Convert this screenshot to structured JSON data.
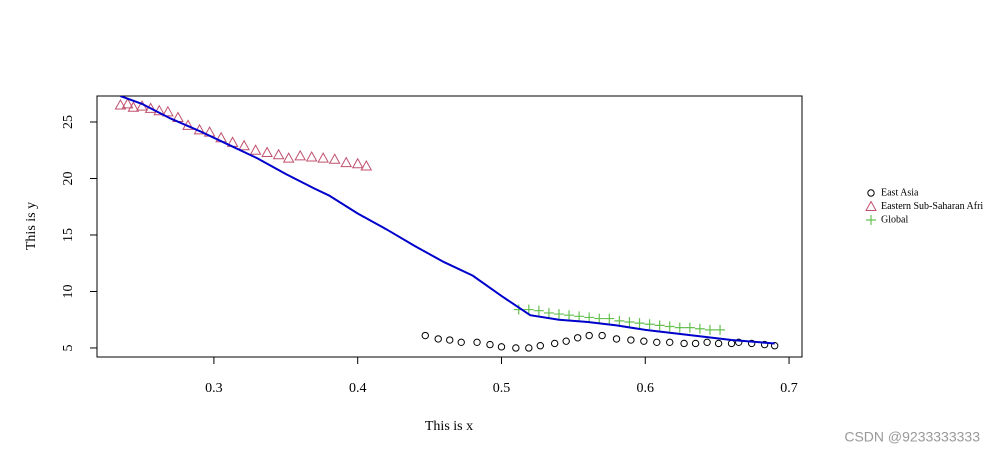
{
  "chart_data": {
    "type": "scatter",
    "x_label": "This is x",
    "y_label": "This is y",
    "xlim": [
      0.2187,
      0.709
    ],
    "ylim": [
      4.2,
      27.3
    ],
    "xticks": [
      0.3,
      0.4,
      0.5,
      0.6,
      0.7
    ],
    "yticks": [
      5,
      10,
      15,
      20,
      25
    ],
    "series": [
      {
        "name": "East Asia",
        "color": "#000000",
        "marker": "circle",
        "x": [
          0.447,
          0.456,
          0.464,
          0.472,
          0.483,
          0.492,
          0.5,
          0.51,
          0.519,
          0.527,
          0.537,
          0.545,
          0.553,
          0.561,
          0.57,
          0.58,
          0.59,
          0.599,
          0.608,
          0.617,
          0.627,
          0.635,
          0.643,
          0.651,
          0.66,
          0.665,
          0.674,
          0.683,
          0.69
        ],
        "values": [
          6.1,
          5.8,
          5.7,
          5.5,
          5.5,
          5.3,
          5.1,
          5.0,
          5.0,
          5.2,
          5.4,
          5.6,
          5.9,
          6.1,
          6.1,
          5.8,
          5.7,
          5.6,
          5.5,
          5.5,
          5.4,
          5.4,
          5.5,
          5.4,
          5.4,
          5.5,
          5.4,
          5.3,
          5.2
        ]
      },
      {
        "name": "Eastern Sub-Saharan Afri",
        "color": "#c0506e",
        "marker": "triangle",
        "x": [
          0.235,
          0.24,
          0.244,
          0.25,
          0.256,
          0.262,
          0.268,
          0.275,
          0.282,
          0.29,
          0.297,
          0.305,
          0.313,
          0.321,
          0.329,
          0.337,
          0.345,
          0.352,
          0.36,
          0.368,
          0.376,
          0.384,
          0.392,
          0.4,
          0.406
        ],
        "values": [
          26.5,
          26.6,
          26.3,
          26.4,
          26.2,
          26.0,
          25.9,
          25.4,
          24.7,
          24.3,
          24.1,
          23.6,
          23.2,
          22.9,
          22.5,
          22.3,
          22.1,
          21.8,
          22.0,
          21.9,
          21.8,
          21.7,
          21.4,
          21.3,
          21.1
        ]
      },
      {
        "name": "Global",
        "color": "#66c050",
        "marker": "plus",
        "x": [
          0.512,
          0.519,
          0.526,
          0.533,
          0.54,
          0.547,
          0.554,
          0.561,
          0.568,
          0.575,
          0.582,
          0.589,
          0.596,
          0.603,
          0.61,
          0.617,
          0.624,
          0.631,
          0.638,
          0.645,
          0.652
        ],
        "values": [
          8.4,
          8.4,
          8.3,
          8.1,
          8.0,
          7.9,
          7.8,
          7.7,
          7.6,
          7.6,
          7.4,
          7.3,
          7.2,
          7.1,
          7.0,
          6.9,
          6.8,
          6.8,
          6.7,
          6.6,
          6.6
        ]
      },
      {
        "color": "#0000cc",
        "marker": "line",
        "x": [
          0.235,
          0.25,
          0.27,
          0.29,
          0.31,
          0.33,
          0.35,
          0.37,
          0.38,
          0.4,
          0.42,
          0.44,
          0.46,
          0.48,
          0.5,
          0.52,
          0.54,
          0.56,
          0.58,
          0.6,
          0.62,
          0.64,
          0.66,
          0.69
        ],
        "values": [
          27.3,
          26.6,
          25.3,
          24.2,
          23.0,
          21.8,
          20.4,
          19.1,
          18.5,
          16.9,
          15.5,
          14.0,
          12.6,
          11.4,
          9.6,
          7.9,
          7.5,
          7.3,
          7.0,
          6.6,
          6.3,
          6.0,
          5.7,
          5.4
        ]
      }
    ]
  },
  "watermark": "CSDN @9233333333"
}
